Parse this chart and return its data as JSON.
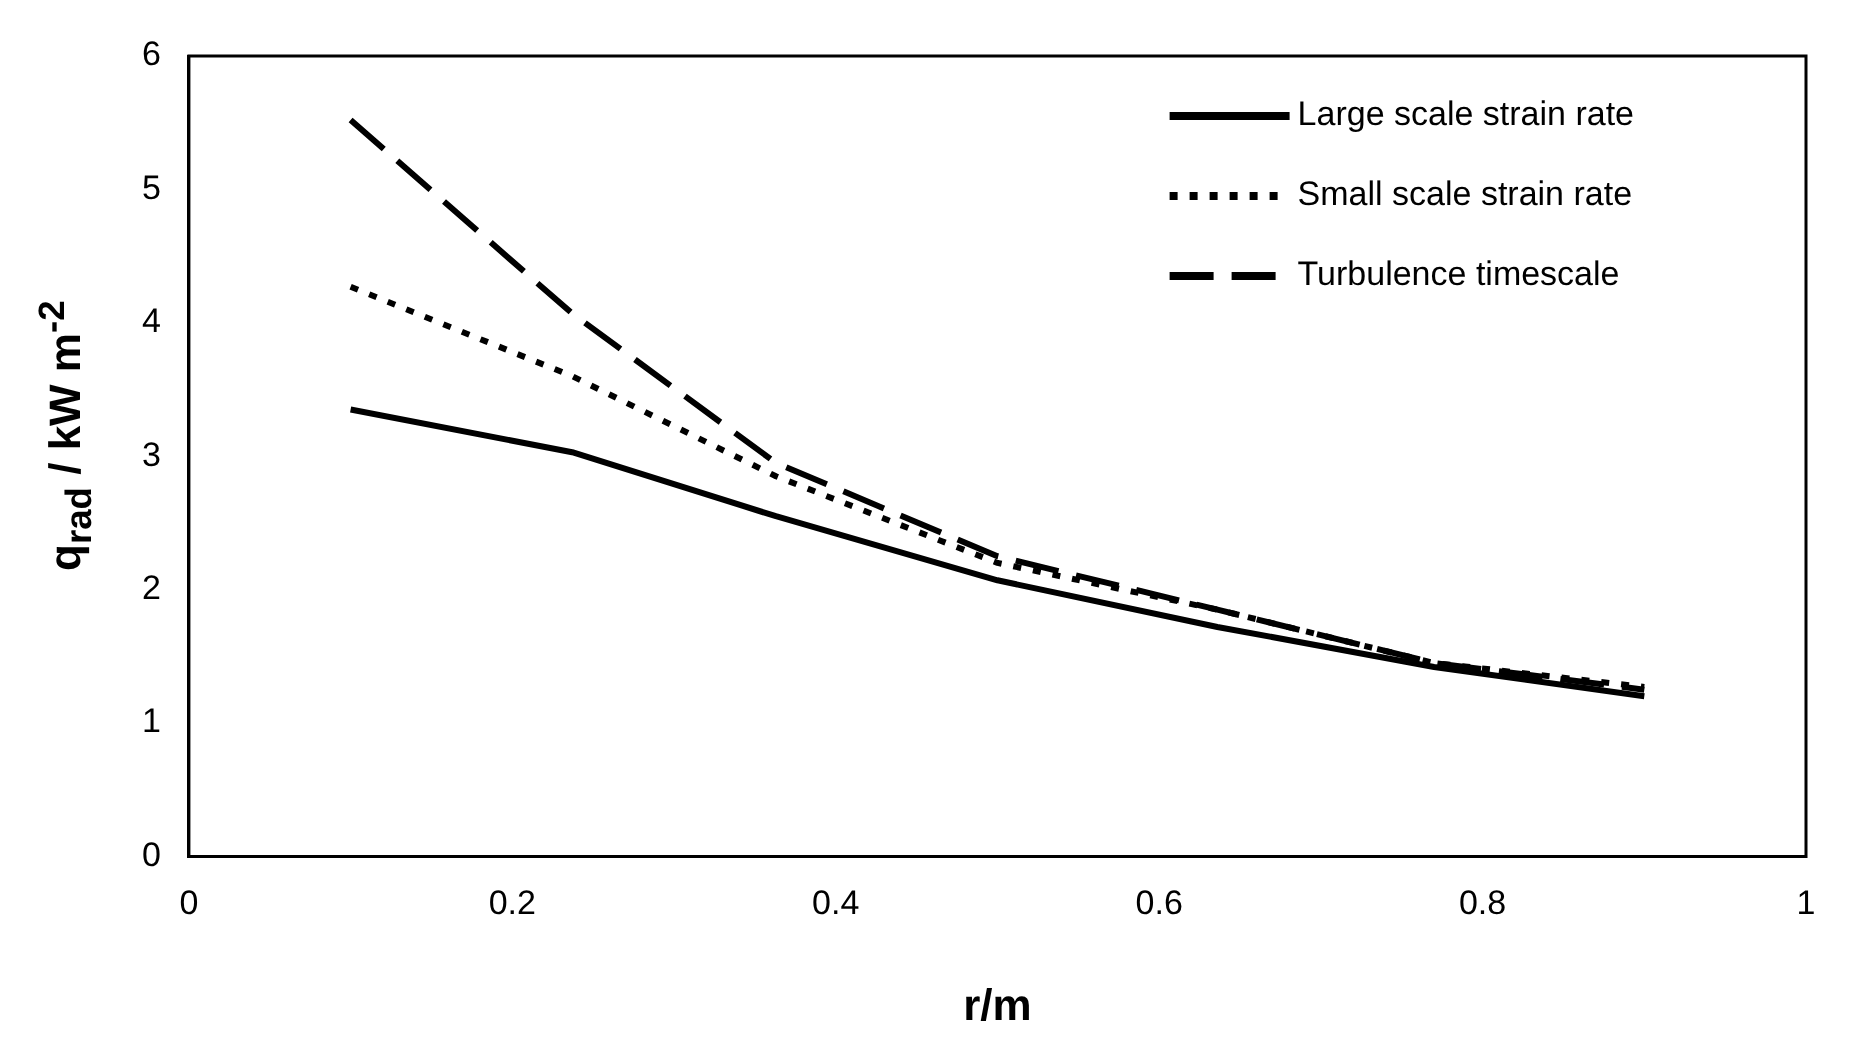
{
  "chart_data": {
    "type": "line",
    "xlabel": "r/m",
    "ylabel": "q$_{rad}$ / kW m$^{-2}$",
    "x": [
      0.1,
      0.237,
      0.363,
      0.5,
      0.636,
      0.77,
      0.9
    ],
    "series": [
      {
        "name": "Large scale strain rate",
        "color": "#000000",
        "line_style": "solid",
        "values": [
          3.35,
          3.03,
          2.55,
          2.07,
          1.72,
          1.42,
          1.2
        ]
      },
      {
        "name": "Small scale strain rate",
        "color": "#000000",
        "line_style": "dotted",
        "values": [
          4.27,
          3.6,
          2.85,
          2.2,
          1.85,
          1.45,
          1.27
        ]
      },
      {
        "name": "Turbulence timescale",
        "color": "#000000",
        "line_style": "dashed",
        "values": [
          5.52,
          4.07,
          2.95,
          2.25,
          1.85,
          1.45,
          1.25
        ]
      }
    ],
    "xlim": [
      0,
      1
    ],
    "xticks": [
      0,
      0.2,
      0.4,
      0.6,
      0.8,
      1
    ],
    "ylim": [
      0,
      6
    ],
    "yticks": [
      0,
      1,
      2,
      3,
      4,
      5,
      6
    ],
    "grid": false,
    "legend": "top right",
    "marker": "none"
  }
}
